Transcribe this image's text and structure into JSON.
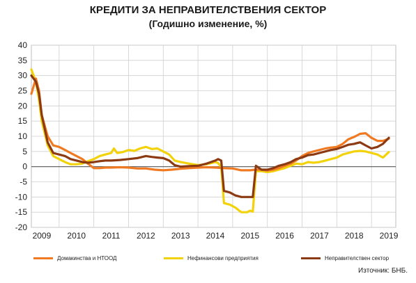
{
  "title": "КРЕДИТИ ЗА НЕПРАВИТЕЛСТВЕНИЯ СЕКТОР",
  "subtitle": "(Годишно изменение, %)",
  "source": "Източник: БНБ.",
  "colors": {
    "households": "#f07a22",
    "nonfinancial": "#f2d20a",
    "total": "#8b3a12",
    "grid": "#cfcfcf",
    "axis": "#555555"
  },
  "chart_data": {
    "type": "line",
    "title": "КРЕДИТИ ЗА НЕПРАВИТЕЛСТВЕНИЯ СЕКТОР",
    "subtitle": "(Годишно изменение, %)",
    "xlabel": "",
    "ylabel": "",
    "ylim": [
      -20,
      40
    ],
    "xlim": [
      2008.7,
      2019.2
    ],
    "yticks": [
      -20,
      -15,
      -10,
      -5,
      0,
      5,
      10,
      15,
      20,
      25,
      30,
      35,
      40
    ],
    "xticks": [
      "2009",
      "2010",
      "2011",
      "2012",
      "2013",
      "2014",
      "2015",
      "2016",
      "2017",
      "2018",
      "2019"
    ],
    "grid": true,
    "legend_position": "bottom",
    "series": [
      {
        "name": "Домакинства и НТООД",
        "color_key": "households",
        "points": [
          [
            2008.7,
            24
          ],
          [
            2008.83,
            29
          ],
          [
            2008.92,
            25
          ],
          [
            2009.0,
            17
          ],
          [
            2009.17,
            10
          ],
          [
            2009.33,
            7
          ],
          [
            2009.5,
            6.5
          ],
          [
            2009.67,
            5.5
          ],
          [
            2009.83,
            4.5
          ],
          [
            2010.0,
            3.5
          ],
          [
            2010.17,
            2.5
          ],
          [
            2010.33,
            1
          ],
          [
            2010.5,
            -0.5
          ],
          [
            2010.67,
            -0.5
          ],
          [
            2010.83,
            -0.3
          ],
          [
            2011.0,
            -0.3
          ],
          [
            2011.25,
            -0.2
          ],
          [
            2011.5,
            -0.3
          ],
          [
            2011.75,
            -0.6
          ],
          [
            2012.0,
            -0.6
          ],
          [
            2012.25,
            -1.0
          ],
          [
            2012.5,
            -1.2
          ],
          [
            2012.75,
            -1.0
          ],
          [
            2013.0,
            -0.7
          ],
          [
            2013.25,
            -0.5
          ],
          [
            2013.5,
            -0.3
          ],
          [
            2013.75,
            -0.2
          ],
          [
            2014.0,
            -0.3
          ],
          [
            2014.25,
            -0.5
          ],
          [
            2014.5,
            -0.6
          ],
          [
            2014.75,
            -1.2
          ],
          [
            2015.0,
            -1.2
          ],
          [
            2015.17,
            -1.0
          ],
          [
            2015.33,
            -1.0
          ],
          [
            2015.5,
            -1.3
          ],
          [
            2015.67,
            -1.0
          ],
          [
            2015.83,
            -0.5
          ],
          [
            2016.0,
            0.3
          ],
          [
            2016.17,
            1.0
          ],
          [
            2016.33,
            2.0
          ],
          [
            2016.5,
            3.5
          ],
          [
            2016.67,
            4.5
          ],
          [
            2016.83,
            5.0
          ],
          [
            2017.0,
            5.5
          ],
          [
            2017.17,
            6.0
          ],
          [
            2017.33,
            6.3
          ],
          [
            2017.5,
            6.5
          ],
          [
            2017.67,
            7.5
          ],
          [
            2017.83,
            9.0
          ],
          [
            2018.0,
            9.8
          ],
          [
            2018.17,
            10.8
          ],
          [
            2018.33,
            11.0
          ],
          [
            2018.5,
            9.5
          ],
          [
            2018.67,
            8.5
          ],
          [
            2018.83,
            8.5
          ],
          [
            2019.0,
            9.2
          ]
        ]
      },
      {
        "name": "Нефинансови предприятия",
        "color_key": "nonfinancial",
        "points": [
          [
            2008.7,
            32
          ],
          [
            2008.83,
            28
          ],
          [
            2008.92,
            22
          ],
          [
            2009.0,
            15
          ],
          [
            2009.17,
            7
          ],
          [
            2009.33,
            3.5
          ],
          [
            2009.5,
            2.5
          ],
          [
            2009.67,
            1.5
          ],
          [
            2009.83,
            0.8
          ],
          [
            2010.0,
            0.8
          ],
          [
            2010.17,
            1.0
          ],
          [
            2010.33,
            1.8
          ],
          [
            2010.5,
            2.5
          ],
          [
            2010.67,
            3.5
          ],
          [
            2010.83,
            4.0
          ],
          [
            2011.0,
            4.5
          ],
          [
            2011.08,
            6.0
          ],
          [
            2011.17,
            4.5
          ],
          [
            2011.33,
            4.8
          ],
          [
            2011.5,
            5.5
          ],
          [
            2011.67,
            5.2
          ],
          [
            2011.83,
            6.0
          ],
          [
            2012.0,
            6.5
          ],
          [
            2012.17,
            5.8
          ],
          [
            2012.33,
            6.0
          ],
          [
            2012.5,
            5.0
          ],
          [
            2012.67,
            4.0
          ],
          [
            2012.83,
            2.0
          ],
          [
            2013.0,
            1.5
          ],
          [
            2013.25,
            1.0
          ],
          [
            2013.5,
            0.5
          ],
          [
            2013.75,
            0.8
          ],
          [
            2014.0,
            1.5
          ],
          [
            2014.08,
            1.2
          ],
          [
            2014.17,
            -0.2
          ],
          [
            2014.25,
            -12
          ],
          [
            2014.42,
            -12.5
          ],
          [
            2014.58,
            -13.5
          ],
          [
            2014.75,
            -15
          ],
          [
            2014.92,
            -15
          ],
          [
            2015.0,
            -14.5
          ],
          [
            2015.08,
            -14.8
          ],
          [
            2015.17,
            -1.5
          ],
          [
            2015.33,
            -1.5
          ],
          [
            2015.5,
            -1.8
          ],
          [
            2015.67,
            -1.5
          ],
          [
            2015.83,
            -1.0
          ],
          [
            2016.0,
            -0.5
          ],
          [
            2016.17,
            0.3
          ],
          [
            2016.33,
            1.0
          ],
          [
            2016.5,
            0.8
          ],
          [
            2016.67,
            1.5
          ],
          [
            2016.83,
            1.3
          ],
          [
            2017.0,
            1.5
          ],
          [
            2017.17,
            2.0
          ],
          [
            2017.33,
            2.5
          ],
          [
            2017.5,
            3.0
          ],
          [
            2017.67,
            4.0
          ],
          [
            2017.83,
            4.5
          ],
          [
            2018.0,
            5.0
          ],
          [
            2018.17,
            5.2
          ],
          [
            2018.33,
            5.0
          ],
          [
            2018.5,
            4.5
          ],
          [
            2018.67,
            4.0
          ],
          [
            2018.83,
            3.0
          ],
          [
            2019.0,
            4.8
          ]
        ]
      },
      {
        "name": "Неправителствен сектор",
        "color_key": "total",
        "points": [
          [
            2008.7,
            30
          ],
          [
            2008.83,
            28
          ],
          [
            2008.92,
            24
          ],
          [
            2009.0,
            17
          ],
          [
            2009.17,
            8
          ],
          [
            2009.33,
            4.5
          ],
          [
            2009.5,
            4.0
          ],
          [
            2009.67,
            3.5
          ],
          [
            2009.83,
            2.5
          ],
          [
            2010.0,
            2.0
          ],
          [
            2010.17,
            1.5
          ],
          [
            2010.33,
            1.3
          ],
          [
            2010.5,
            1.5
          ],
          [
            2010.67,
            1.8
          ],
          [
            2010.83,
            2.0
          ],
          [
            2011.0,
            2.0
          ],
          [
            2011.25,
            2.2
          ],
          [
            2011.5,
            2.5
          ],
          [
            2011.75,
            2.8
          ],
          [
            2012.0,
            3.5
          ],
          [
            2012.17,
            3.2
          ],
          [
            2012.33,
            3.0
          ],
          [
            2012.5,
            2.8
          ],
          [
            2012.67,
            2.0
          ],
          [
            2012.83,
            0.5
          ],
          [
            2013.0,
            0.0
          ],
          [
            2013.25,
            0.2
          ],
          [
            2013.5,
            0.3
          ],
          [
            2013.75,
            1.0
          ],
          [
            2014.0,
            2.0
          ],
          [
            2014.08,
            2.5
          ],
          [
            2014.17,
            2.0
          ],
          [
            2014.25,
            -8
          ],
          [
            2014.42,
            -8.5
          ],
          [
            2014.58,
            -9.5
          ],
          [
            2014.75,
            -10
          ],
          [
            2014.92,
            -10
          ],
          [
            2015.0,
            -10
          ],
          [
            2015.08,
            -10
          ],
          [
            2015.17,
            0.3
          ],
          [
            2015.33,
            -1.0
          ],
          [
            2015.5,
            -1.0
          ],
          [
            2015.67,
            -0.5
          ],
          [
            2015.83,
            0.3
          ],
          [
            2016.0,
            0.8
          ],
          [
            2016.17,
            1.5
          ],
          [
            2016.33,
            2.5
          ],
          [
            2016.5,
            3.0
          ],
          [
            2016.67,
            3.8
          ],
          [
            2016.83,
            4.0
          ],
          [
            2017.0,
            4.5
          ],
          [
            2017.17,
            5.0
          ],
          [
            2017.33,
            5.5
          ],
          [
            2017.5,
            5.8
          ],
          [
            2017.67,
            6.5
          ],
          [
            2017.83,
            7.2
          ],
          [
            2018.0,
            7.5
          ],
          [
            2018.17,
            8.0
          ],
          [
            2018.33,
            7.0
          ],
          [
            2018.5,
            6.0
          ],
          [
            2018.67,
            6.5
          ],
          [
            2018.83,
            7.5
          ],
          [
            2019.0,
            9.5
          ]
        ]
      }
    ]
  }
}
